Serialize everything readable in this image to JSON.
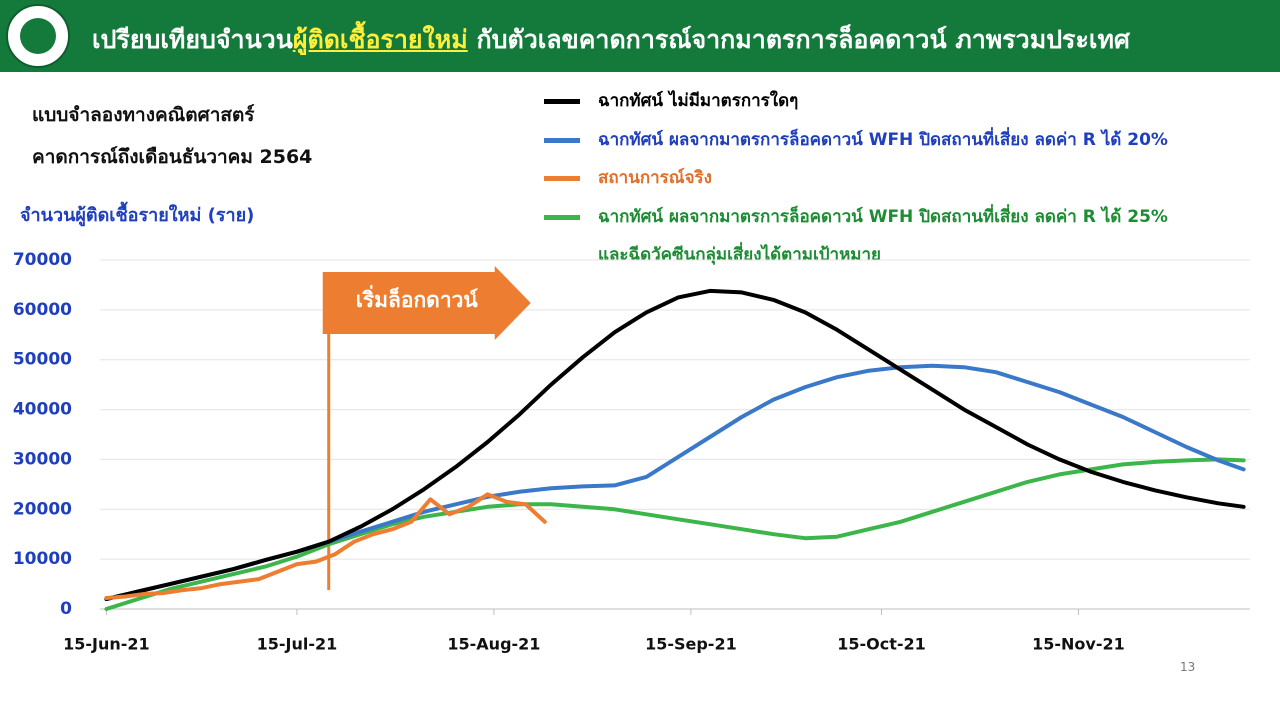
{
  "header": {
    "title_before": "เปรียบเทียบจำนวน",
    "title_highlight": "ผู้ติดเชื้อรายใหม่",
    "title_after": " กับตัวเลขคาดการณ์จากมาตรการล็อคดาวน์ ภาพรวมประเทศ"
  },
  "notes": [
    "แบบจำลองทางคณิตศาสตร์",
    "คาดการณ์ถึงเดือนธันวาคม 2564"
  ],
  "page_number": "13",
  "chart_data": {
    "type": "line",
    "y_label": "จำนวนผู้ติดเชื้อรายใหม่ (ราย)",
    "xlim": [
      "2021-06-14",
      "2021-12-12"
    ],
    "xticks": [
      {
        "value": "2021-06-15",
        "label": "15-Jun-21"
      },
      {
        "value": "2021-07-15",
        "label": "15-Jul-21"
      },
      {
        "value": "2021-08-15",
        "label": "15-Aug-21"
      },
      {
        "value": "2021-09-15",
        "label": "15-Sep-21"
      },
      {
        "value": "2021-10-15",
        "label": "15-Oct-21"
      },
      {
        "value": "2021-11-15",
        "label": "15-Nov-21"
      }
    ],
    "ylim": [
      0,
      70000
    ],
    "yticks": [
      0,
      10000,
      20000,
      30000,
      40000,
      50000,
      60000,
      70000
    ],
    "grid": true,
    "x": [
      "2021-06-15",
      "2021-06-20",
      "2021-06-25",
      "2021-06-30",
      "2021-07-05",
      "2021-07-10",
      "2021-07-15",
      "2021-07-20",
      "2021-07-25",
      "2021-07-30",
      "2021-08-04",
      "2021-08-09",
      "2021-08-14",
      "2021-08-19",
      "2021-08-24",
      "2021-08-29",
      "2021-09-03",
      "2021-09-08",
      "2021-09-13",
      "2021-09-18",
      "2021-09-23",
      "2021-09-28",
      "2021-10-03",
      "2021-10-08",
      "2021-10-13",
      "2021-10-18",
      "2021-10-23",
      "2021-10-28",
      "2021-11-02",
      "2021-11-07",
      "2021-11-12",
      "2021-11-17",
      "2021-11-22",
      "2021-11-27",
      "2021-12-02",
      "2021-12-07",
      "2021-12-11"
    ],
    "series": [
      {
        "name": "ฉากทัศน์ ไม่มีมาตรการใดๆ",
        "color": "#000000",
        "text_color": "#000000",
        "values": [
          2000,
          3500,
          5000,
          6500,
          8000,
          9800,
          11500,
          13500,
          16500,
          20000,
          24000,
          28500,
          33500,
          39000,
          45000,
          50500,
          55500,
          59500,
          62500,
          63800,
          63500,
          62000,
          59500,
          56000,
          52000,
          48000,
          44000,
          40000,
          36500,
          33000,
          30000,
          27500,
          25500,
          23800,
          22400,
          21200,
          20500
        ]
      },
      {
        "name": "ฉากทัศน์ ผลจากมาตรการล็อคดาวน์ WFH ปิดสถานที่เสี่ยง ลดค่า R ได้ 20%",
        "color": "#3a78c9",
        "text_color": "#1f3fbf",
        "values": [
          2000,
          3500,
          5000,
          6500,
          8000,
          9800,
          11500,
          13500,
          15500,
          17500,
          19500,
          21000,
          22500,
          23500,
          24200,
          24600,
          24800,
          26500,
          30500,
          34500,
          38500,
          42000,
          44500,
          46500,
          47800,
          48500,
          48800,
          48500,
          47500,
          45500,
          43500,
          41000,
          38500,
          35500,
          32500,
          29800,
          28000
        ]
      },
      {
        "name": "สถานการณ์จริง",
        "color": "#ed7d31",
        "text_color": "#e0702a",
        "x": [
          "2021-06-15",
          "2021-06-18",
          "2021-06-21",
          "2021-06-24",
          "2021-06-27",
          "2021-06-30",
          "2021-07-03",
          "2021-07-06",
          "2021-07-09",
          "2021-07-12",
          "2021-07-15",
          "2021-07-18",
          "2021-07-21",
          "2021-07-24",
          "2021-07-27",
          "2021-07-30",
          "2021-08-02",
          "2021-08-05",
          "2021-08-08",
          "2021-08-11",
          "2021-08-14",
          "2021-08-17",
          "2021-08-20",
          "2021-08-23"
        ],
        "values": [
          2200,
          2500,
          3000,
          3200,
          3800,
          4200,
          5000,
          5500,
          6000,
          7500,
          9000,
          9500,
          11000,
          13500,
          15000,
          16000,
          17500,
          22000,
          19000,
          20500,
          23000,
          21500,
          21000,
          17500
        ]
      },
      {
        "name": "ฉากทัศน์ ผลจากมาตรการล็อคดาวน์ WFH ปิดสถานที่เสี่ยง ลดค่า R ได้ 25%\nและฉีดวัคซีนกลุ่มเสี่ยงได้ตามเป้าหมาย",
        "color": "#3cb54a",
        "text_color": "#1e8c34",
        "values": [
          0,
          2000,
          4000,
          5500,
          7000,
          8500,
          10500,
          13000,
          15000,
          17000,
          18500,
          19500,
          20500,
          21000,
          21000,
          20500,
          20000,
          19000,
          18000,
          17000,
          16000,
          15000,
          14200,
          14500,
          16000,
          17500,
          19500,
          21500,
          23500,
          25500,
          27000,
          28000,
          29000,
          29500,
          29800,
          30000,
          29800
        ]
      }
    ],
    "annotation": {
      "x": "2021-07-20",
      "label": "เริ่มล็อกดาวน์",
      "color": "#ed7d31"
    }
  }
}
